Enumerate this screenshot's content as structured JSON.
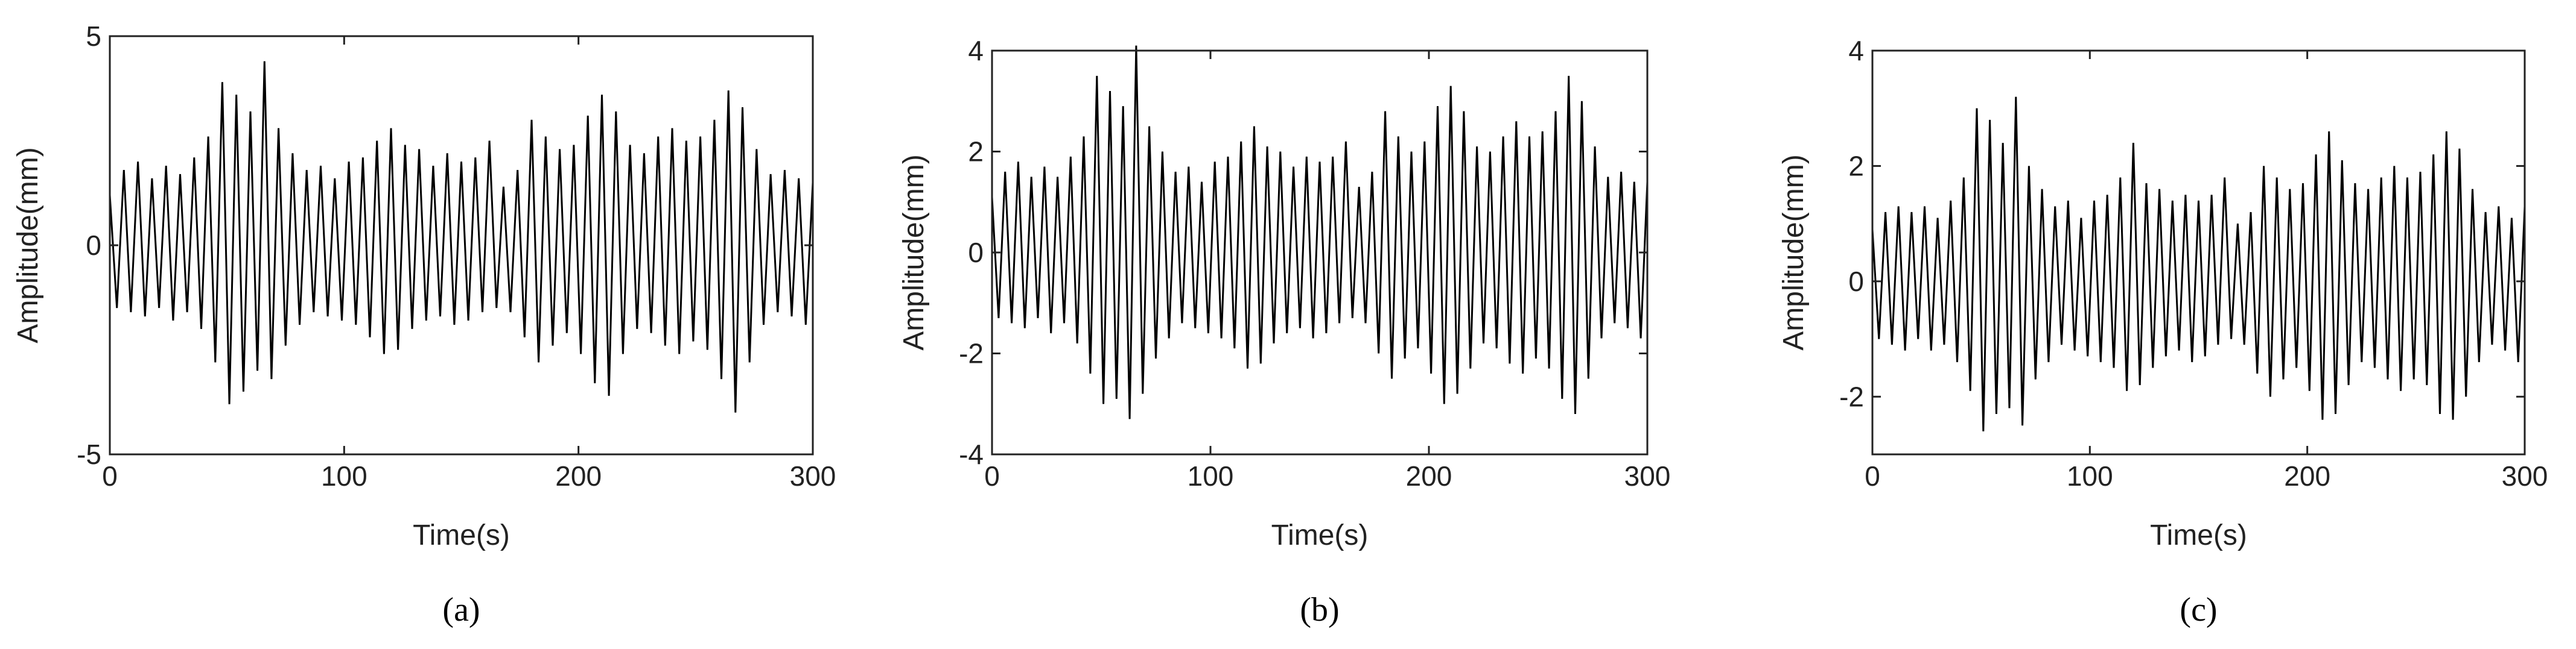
{
  "chart_data": [
    {
      "type": "line",
      "caption": "(a)",
      "xlabel": "Time(s)",
      "ylabel": "Amplitude(mm)",
      "xlim": [
        0,
        300
      ],
      "xticks": [
        0,
        100,
        200,
        300
      ],
      "ylim": [
        -5,
        5
      ],
      "yticks": [
        -5,
        0,
        5
      ],
      "color": "#000000",
      "x": [
        0,
        3,
        6,
        9,
        12,
        15,
        18,
        21,
        24,
        27,
        30,
        33,
        36,
        39,
        42,
        45,
        48,
        51,
        54,
        57,
        60,
        63,
        66,
        69,
        72,
        75,
        78,
        81,
        84,
        87,
        90,
        93,
        96,
        99,
        102,
        105,
        108,
        111,
        114,
        117,
        120,
        123,
        126,
        129,
        132,
        135,
        138,
        141,
        144,
        147,
        150,
        153,
        156,
        159,
        162,
        165,
        168,
        171,
        174,
        177,
        180,
        183,
        186,
        189,
        192,
        195,
        198,
        201,
        204,
        207,
        210,
        213,
        216,
        219,
        222,
        225,
        228,
        231,
        234,
        237,
        240,
        243,
        246,
        249,
        252,
        255,
        258,
        261,
        264,
        267,
        270,
        273,
        276,
        279,
        282,
        285,
        288,
        291,
        294,
        297,
        300
      ],
      "values": [
        1.2,
        -1.5,
        1.8,
        -1.6,
        2.0,
        -1.7,
        1.6,
        -1.5,
        1.9,
        -1.8,
        1.7,
        -1.6,
        2.1,
        -2.0,
        2.6,
        -2.8,
        3.9,
        -3.8,
        3.6,
        -3.5,
        3.2,
        -3.0,
        4.4,
        -3.2,
        2.8,
        -2.4,
        2.2,
        -1.9,
        1.8,
        -1.6,
        1.9,
        -1.7,
        1.6,
        -1.8,
        2.0,
        -1.9,
        2.1,
        -2.2,
        2.5,
        -2.6,
        2.8,
        -2.5,
        2.4,
        -2.0,
        2.3,
        -1.8,
        1.9,
        -1.7,
        2.2,
        -1.9,
        2.0,
        -1.8,
        2.1,
        -1.6,
        2.5,
        -1.5,
        1.4,
        -1.6,
        1.8,
        -2.2,
        3.0,
        -2.8,
        2.6,
        -2.4,
        2.3,
        -2.1,
        2.4,
        -2.6,
        3.1,
        -3.3,
        3.6,
        -3.6,
        3.2,
        -2.6,
        2.4,
        -2.0,
        2.2,
        -2.1,
        2.6,
        -2.4,
        2.8,
        -2.6,
        2.5,
        -2.3,
        2.6,
        -2.5,
        3.0,
        -3.2,
        3.7,
        -4.0,
        3.3,
        -2.8,
        2.3,
        -1.9,
        1.7,
        -1.6,
        1.8,
        -1.7,
        1.6,
        -1.9,
        1.5
      ]
    },
    {
      "type": "line",
      "caption": "(b)",
      "xlabel": "Time(s)",
      "ylabel": "Amplitude(mm)",
      "xlim": [
        0,
        300
      ],
      "xticks": [
        0,
        100,
        200,
        300
      ],
      "ylim": [
        -4,
        4
      ],
      "yticks": [
        -4,
        -2,
        0,
        2,
        4
      ],
      "color": "#000000",
      "x": [
        0,
        3,
        6,
        9,
        12,
        15,
        18,
        21,
        24,
        27,
        30,
        33,
        36,
        39,
        42,
        45,
        48,
        51,
        54,
        57,
        60,
        63,
        66,
        69,
        72,
        75,
        78,
        81,
        84,
        87,
        90,
        93,
        96,
        99,
        102,
        105,
        108,
        111,
        114,
        117,
        120,
        123,
        126,
        129,
        132,
        135,
        138,
        141,
        144,
        147,
        150,
        153,
        156,
        159,
        162,
        165,
        168,
        171,
        174,
        177,
        180,
        183,
        186,
        189,
        192,
        195,
        198,
        201,
        204,
        207,
        210,
        213,
        216,
        219,
        222,
        225,
        228,
        231,
        234,
        237,
        240,
        243,
        246,
        249,
        252,
        255,
        258,
        261,
        264,
        267,
        270,
        273,
        276,
        279,
        282,
        285,
        288,
        291,
        294,
        297,
        300
      ],
      "values": [
        1.1,
        -1.3,
        1.6,
        -1.4,
        1.8,
        -1.5,
        1.5,
        -1.3,
        1.7,
        -1.6,
        1.5,
        -1.4,
        1.9,
        -1.8,
        2.3,
        -2.4,
        3.5,
        -3.0,
        3.2,
        -2.9,
        2.9,
        -3.3,
        4.1,
        -2.8,
        2.5,
        -2.1,
        2.0,
        -1.7,
        1.6,
        -1.4,
        1.7,
        -1.5,
        1.4,
        -1.6,
        1.8,
        -1.7,
        1.9,
        -1.9,
        2.2,
        -2.3,
        2.5,
        -2.2,
        2.1,
        -1.8,
        2.0,
        -1.6,
        1.7,
        -1.5,
        1.9,
        -1.7,
        1.8,
        -1.6,
        1.9,
        -1.4,
        2.2,
        -1.3,
        1.3,
        -1.4,
        1.6,
        -2.0,
        2.8,
        -2.5,
        2.3,
        -2.1,
        2.0,
        -1.9,
        2.2,
        -2.4,
        2.9,
        -3.0,
        3.3,
        -2.8,
        2.8,
        -2.3,
        2.1,
        -1.8,
        2.0,
        -1.9,
        2.3,
        -2.2,
        2.6,
        -2.4,
        2.3,
        -2.1,
        2.4,
        -2.3,
        2.8,
        -2.9,
        3.5,
        -3.2,
        3.0,
        -2.5,
        2.1,
        -1.7,
        1.5,
        -1.4,
        1.6,
        -1.5,
        1.4,
        -1.7,
        1.4
      ]
    },
    {
      "type": "line",
      "caption": "(c)",
      "xlabel": "Time(s)",
      "ylabel": "Amplitude(mm)",
      "xlim": [
        0,
        300
      ],
      "xticks": [
        0,
        100,
        200,
        300
      ],
      "ylim": [
        -3,
        4
      ],
      "yticks": [
        -2,
        0,
        2,
        4
      ],
      "color": "#000000",
      "x": [
        0,
        3,
        6,
        9,
        12,
        15,
        18,
        21,
        24,
        27,
        30,
        33,
        36,
        39,
        42,
        45,
        48,
        51,
        54,
        57,
        60,
        63,
        66,
        69,
        72,
        75,
        78,
        81,
        84,
        87,
        90,
        93,
        96,
        99,
        102,
        105,
        108,
        111,
        114,
        117,
        120,
        123,
        126,
        129,
        132,
        135,
        138,
        141,
        144,
        147,
        150,
        153,
        156,
        159,
        162,
        165,
        168,
        171,
        174,
        177,
        180,
        183,
        186,
        189,
        192,
        195,
        198,
        201,
        204,
        207,
        210,
        213,
        216,
        219,
        222,
        225,
        228,
        231,
        234,
        237,
        240,
        243,
        246,
        249,
        252,
        255,
        258,
        261,
        264,
        267,
        270,
        273,
        276,
        279,
        282,
        285,
        288,
        291,
        294,
        297,
        300
      ],
      "values": [
        0.9,
        -1.0,
        1.2,
        -1.1,
        1.3,
        -1.2,
        1.2,
        -1.0,
        1.3,
        -1.2,
        1.1,
        -1.1,
        1.4,
        -1.4,
        1.8,
        -1.9,
        3.0,
        -2.6,
        2.8,
        -2.3,
        2.4,
        -2.2,
        3.2,
        -2.5,
        2.0,
        -1.7,
        1.6,
        -1.4,
        1.3,
        -1.1,
        1.4,
        -1.2,
        1.1,
        -1.3,
        1.4,
        -1.4,
        1.5,
        -1.5,
        1.8,
        -1.9,
        2.4,
        -1.8,
        1.7,
        -1.5,
        1.6,
        -1.3,
        1.4,
        -1.2,
        1.5,
        -1.4,
        1.4,
        -1.3,
        1.5,
        -1.1,
        1.8,
        -1.0,
        1.0,
        -1.1,
        1.2,
        -1.6,
        2.0,
        -2.0,
        1.8,
        -1.7,
        1.6,
        -1.5,
        1.7,
        -1.9,
        2.2,
        -2.4,
        2.6,
        -2.3,
        2.1,
        -1.8,
        1.7,
        -1.4,
        1.6,
        -1.5,
        1.8,
        -1.7,
        2.0,
        -1.9,
        1.8,
        -1.7,
        1.9,
        -1.8,
        2.2,
        -2.3,
        2.6,
        -2.4,
        2.3,
        -2.0,
        1.6,
        -1.4,
        1.2,
        -1.1,
        1.3,
        -1.2,
        1.1,
        -1.4,
        1.3
      ]
    }
  ]
}
